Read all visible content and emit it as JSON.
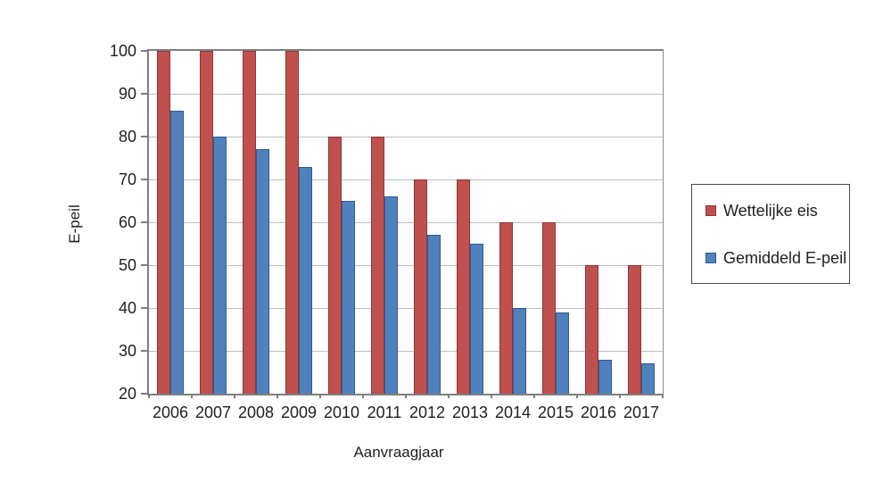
{
  "chart_data": {
    "type": "bar",
    "title": "",
    "xlabel": "Aanvraagjaar",
    "ylabel": "E-peil",
    "categories": [
      "2006",
      "2007",
      "2008",
      "2009",
      "2010",
      "2011",
      "2012",
      "2013",
      "2014",
      "2015",
      "2016",
      "2017"
    ],
    "series": [
      {
        "name": "Wettelijke eis",
        "color": "#c0504d",
        "border_color": "#8c3836",
        "values": [
          100,
          100,
          100,
          100,
          80,
          80,
          70,
          70,
          60,
          60,
          50,
          50
        ]
      },
      {
        "name": "Gemiddeld E-peil",
        "color": "#4f81bd",
        "border_color": "#305a94",
        "values": [
          86,
          80,
          77,
          73,
          65,
          66,
          57,
          55,
          40,
          39,
          28,
          27
        ]
      }
    ],
    "ylim": [
      20,
      100
    ],
    "yticks": [
      20,
      30,
      40,
      50,
      60,
      70,
      80,
      90,
      100
    ],
    "grid": true,
    "legend_position": "right"
  },
  "style": {
    "gridline_color": "#bfbfbf",
    "axis_color": "#7f7f7f",
    "background_color": "#ffffff",
    "text_color": "#1f1f1f"
  }
}
